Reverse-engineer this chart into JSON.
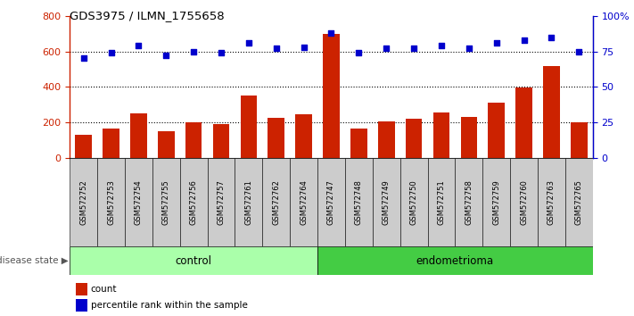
{
  "title": "GDS3975 / ILMN_1755658",
  "samples": [
    "GSM572752",
    "GSM572753",
    "GSM572754",
    "GSM572755",
    "GSM572756",
    "GSM572757",
    "GSM572761",
    "GSM572762",
    "GSM572764",
    "GSM572747",
    "GSM572748",
    "GSM572749",
    "GSM572750",
    "GSM572751",
    "GSM572758",
    "GSM572759",
    "GSM572760",
    "GSM572763",
    "GSM572765"
  ],
  "counts": [
    130,
    165,
    250,
    150,
    200,
    190,
    350,
    225,
    245,
    700,
    165,
    205,
    220,
    255,
    230,
    310,
    395,
    515,
    200
  ],
  "percentiles": [
    70,
    74,
    79,
    72,
    75,
    74,
    81,
    77,
    78,
    88,
    74,
    77,
    77,
    79,
    77,
    81,
    83,
    85,
    75
  ],
  "control_count": 9,
  "endometrioma_count": 10,
  "bar_color": "#cc2200",
  "dot_color": "#0000cc",
  "ylim_left": [
    0,
    800
  ],
  "ylim_right": [
    0,
    100
  ],
  "yticks_left": [
    0,
    200,
    400,
    600,
    800
  ],
  "yticks_right": [
    0,
    25,
    50,
    75,
    100
  ],
  "ytick_labels_right": [
    "0",
    "25",
    "50",
    "75",
    "100%"
  ],
  "control_label": "control",
  "endometrioma_label": "endometrioma",
  "disease_state_label": "disease state",
  "legend_count": "count",
  "legend_percentile": "percentile rank within the sample",
  "control_color": "#aaffaa",
  "endometrioma_color": "#44cc44",
  "sample_bg_color": "#cccccc",
  "dotted_line_color": "#000000",
  "hline_vals": [
    200,
    400,
    600
  ]
}
